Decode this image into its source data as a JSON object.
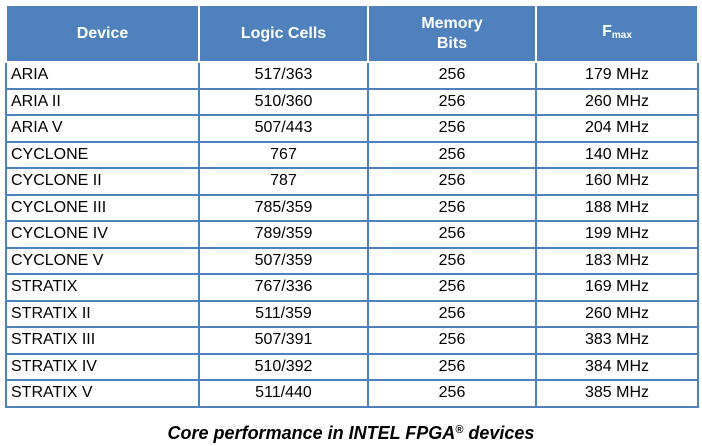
{
  "table": {
    "headers": {
      "device": "Device",
      "logic_cells": "Logic Cells",
      "memory_line1": "Memory",
      "memory_line2": "Bits",
      "fmax_main": "F",
      "fmax_sub": "max"
    },
    "rows": [
      {
        "device": "ARIA",
        "logic_cells": "517/363",
        "memory_bits": "256",
        "fmax": "179 MHz"
      },
      {
        "device": "ARIA II",
        "logic_cells": "510/360",
        "memory_bits": "256",
        "fmax": "260 MHz"
      },
      {
        "device": "ARIA V",
        "logic_cells": "507/443",
        "memory_bits": "256",
        "fmax": "204 MHz"
      },
      {
        "device": "CYCLONE",
        "logic_cells": "767",
        "memory_bits": "256",
        "fmax": "140 MHz"
      },
      {
        "device": "CYCLONE II",
        "logic_cells": "787",
        "memory_bits": "256",
        "fmax": "160 MHz"
      },
      {
        "device": "CYCLONE III",
        "logic_cells": "785/359",
        "memory_bits": "256",
        "fmax": "188 MHz"
      },
      {
        "device": "CYCLONE IV",
        "logic_cells": "789/359",
        "memory_bits": "256",
        "fmax": "199 MHz"
      },
      {
        "device": "CYCLONE V",
        "logic_cells": "507/359",
        "memory_bits": "256",
        "fmax": "183 MHz"
      },
      {
        "device": "STRATIX",
        "logic_cells": "767/336",
        "memory_bits": "256",
        "fmax": "169 MHz"
      },
      {
        "device": "STRATIX II",
        "logic_cells": "511/359",
        "memory_bits": "256",
        "fmax": "260 MHz"
      },
      {
        "device": "STRATIX III",
        "logic_cells": "507/391",
        "memory_bits": "256",
        "fmax": "383 MHz"
      },
      {
        "device": "STRATIX IV",
        "logic_cells": "510/392",
        "memory_bits": "256",
        "fmax": "384 MHz"
      },
      {
        "device": "STRATIX V",
        "logic_cells": "511/440",
        "memory_bits": "256",
        "fmax": "385 MHz"
      }
    ]
  },
  "caption": {
    "text_before": "Core performance in INTEL FPGA",
    "registered_mark": "®",
    "text_after": " devices"
  },
  "colors": {
    "header_bg": "#4f81bd",
    "header_text": "#ffffff",
    "border": "#4f81bd"
  }
}
